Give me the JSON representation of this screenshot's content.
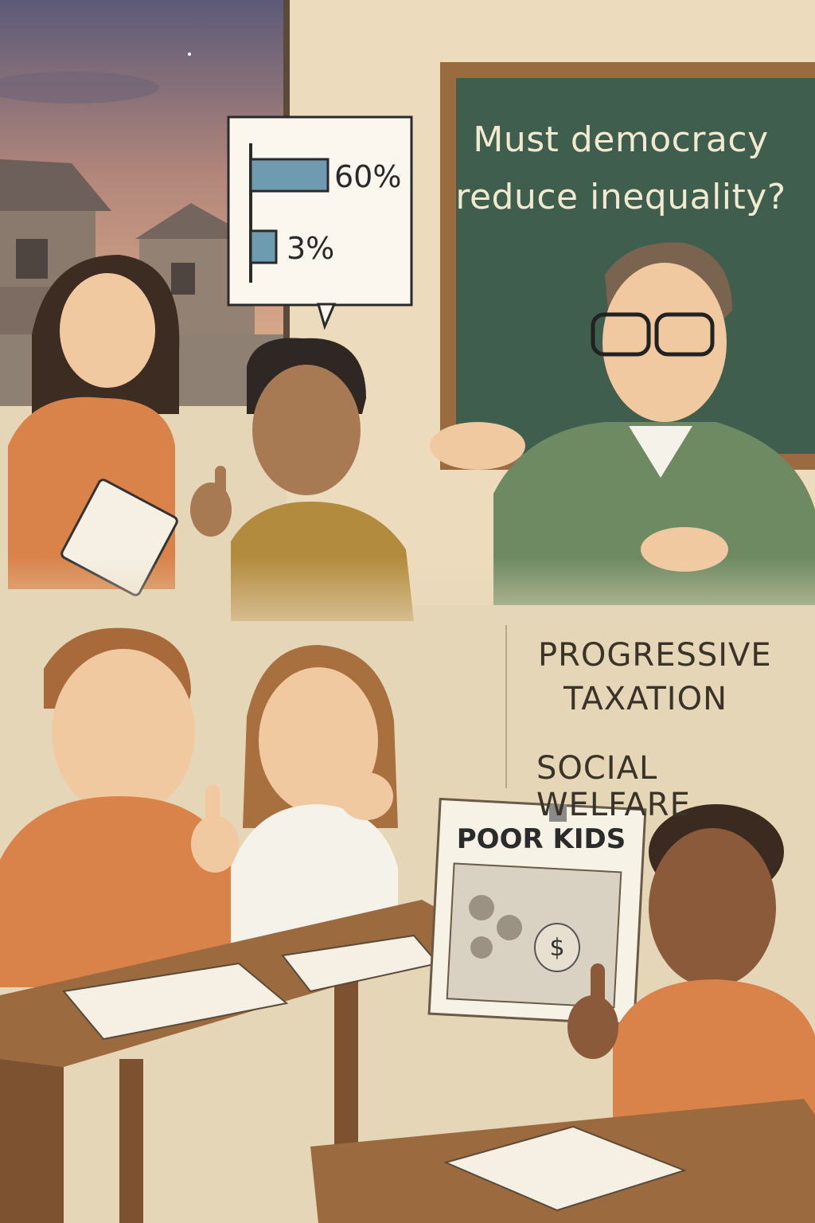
{
  "chalkboard": {
    "line1": "Must democracy",
    "line2": "reduce inequality?"
  },
  "speech_bubble": {
    "bar1_label": "60%",
    "bar1_value": 60,
    "bar2_label": "3%",
    "bar2_value": 3,
    "bar_color": "#6f9bb0"
  },
  "wall_notes": {
    "line1": "PROGRESSIVE",
    "line2": "TAXATION",
    "line3": "SOCIAL WELFARE"
  },
  "poster": {
    "title": "POOR KIDS",
    "money_symbol": "$"
  },
  "colors": {
    "chalkboard": "#3f5e4d",
    "board_frame": "#9a6b3e",
    "wall": "#e6d6b8",
    "desk": "#9b6a3f",
    "shirt_orange": "#d9834a",
    "teacher_sweater": "#6d8a63"
  }
}
